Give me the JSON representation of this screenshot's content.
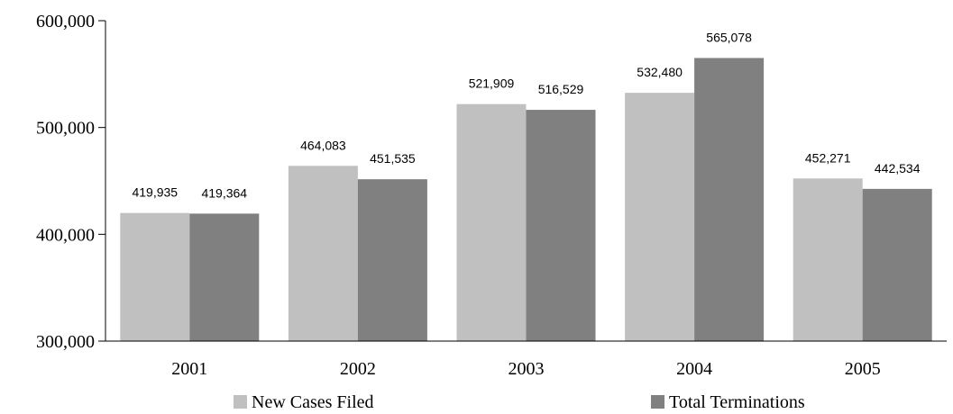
{
  "chart_data": {
    "type": "bar",
    "categories": [
      "2001",
      "2002",
      "2003",
      "2004",
      "2005"
    ],
    "series": [
      {
        "name": "New Cases Filed",
        "values": [
          419935,
          464083,
          521909,
          532480,
          452271
        ],
        "labels": [
          "419,935",
          "464,083",
          "521,909",
          "532,480",
          "452,271"
        ],
        "color": "#c0c0c0"
      },
      {
        "name": "Total Terminations",
        "values": [
          419364,
          451535,
          516529,
          565078,
          442534
        ],
        "labels": [
          "419,364",
          "451,535",
          "516,529",
          "565,078",
          "442,534"
        ],
        "color": "#808080"
      }
    ],
    "ylim": [
      300000,
      600000
    ],
    "yticks": [
      300000,
      400000,
      500000,
      600000
    ],
    "ytick_labels": [
      "300,000",
      "400,000",
      "500,000",
      "600,000"
    ],
    "legend_position": "bottom",
    "grid": false,
    "title": "",
    "xlabel": "",
    "ylabel": ""
  }
}
